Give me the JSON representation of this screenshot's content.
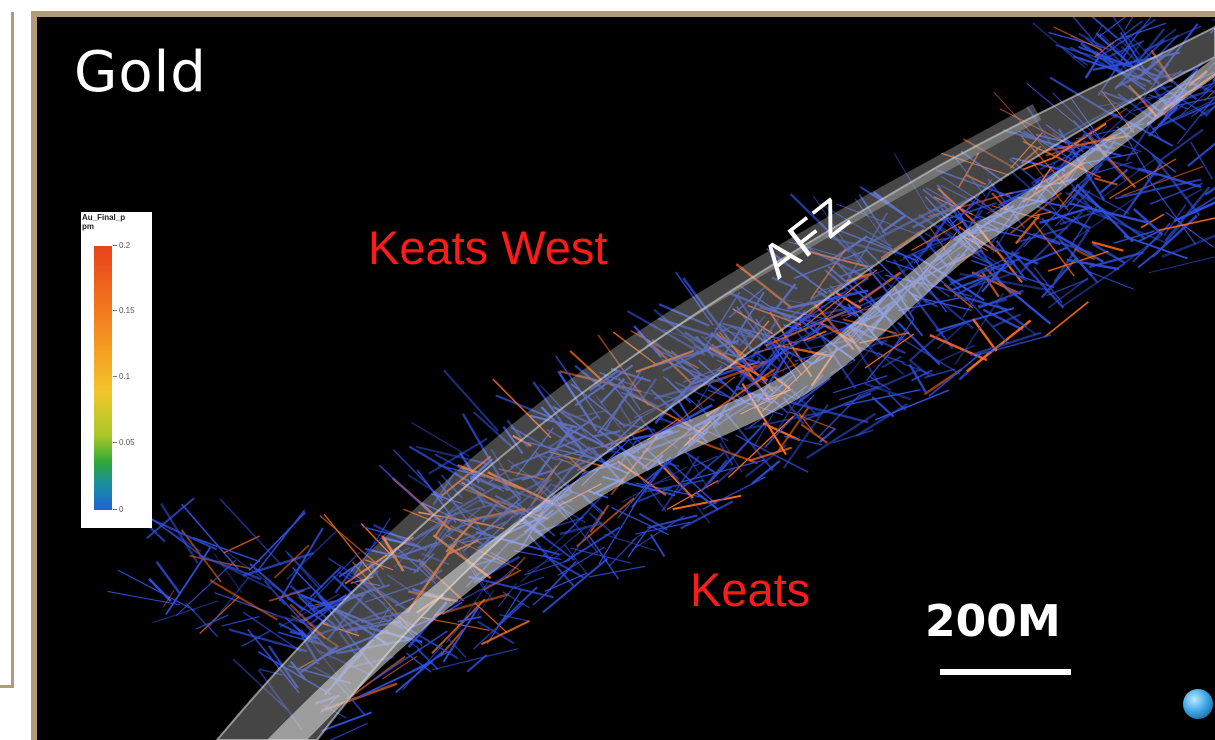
{
  "title": "Gold",
  "legend": {
    "title": "Au_Final_p\npm",
    "ticks": [
      "0.2",
      "0.15",
      "0.1",
      "0.05",
      "0"
    ],
    "tick_values": [
      0.2,
      0.15,
      0.1,
      0.05,
      0
    ]
  },
  "labels": {
    "keats_west": "Keats West",
    "keats": "Keats",
    "afz": "AFZ"
  },
  "scale": {
    "text": "200M"
  },
  "colors": {
    "background": "#000000",
    "frame": "#b39b7a",
    "label_red": "#ff1a1a",
    "drill_blue": "#2f4fe0",
    "drill_orange": "#ff6a1a",
    "fault_grey": "#bfbfbf"
  }
}
